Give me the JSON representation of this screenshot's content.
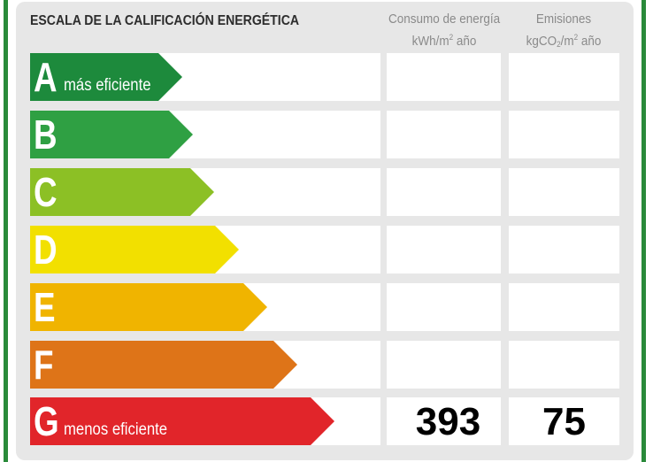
{
  "header": {
    "title": "ESCALA DE LA CALIFICACIÓN ENERGÉTICA",
    "energy_col_line1": "Consumo de energía",
    "energy_col_line2_prefix": "kWh/m",
    "energy_col_line2_sup": "2",
    "energy_col_line2_suffix": " año",
    "emis_col_line1": "Emisiones",
    "emis_col_line2_prefix": "kgCO",
    "emis_col_line2_sub": "2",
    "emis_col_line2_suffix": "/m",
    "emis_col_line2_sup": "2",
    "emis_col_line2_end": " año"
  },
  "ratings": [
    {
      "letter": "A",
      "label": "más eficiente",
      "color": "#1d8a3c",
      "energy": "",
      "emissions": ""
    },
    {
      "letter": "B",
      "label": "",
      "color": "#2fa043",
      "energy": "",
      "emissions": ""
    },
    {
      "letter": "C",
      "label": "",
      "color": "#8cc025",
      "energy": "",
      "emissions": ""
    },
    {
      "letter": "D",
      "label": "",
      "color": "#f2e000",
      "energy": "",
      "emissions": ""
    },
    {
      "letter": "E",
      "label": "",
      "color": "#f0b400",
      "energy": "",
      "emissions": ""
    },
    {
      "letter": "F",
      "label": "",
      "color": "#de7418",
      "energy": "",
      "emissions": ""
    },
    {
      "letter": "G",
      "label": "menos eficiente",
      "color": "#e1252a",
      "energy": "393",
      "emissions": "75"
    }
  ]
}
